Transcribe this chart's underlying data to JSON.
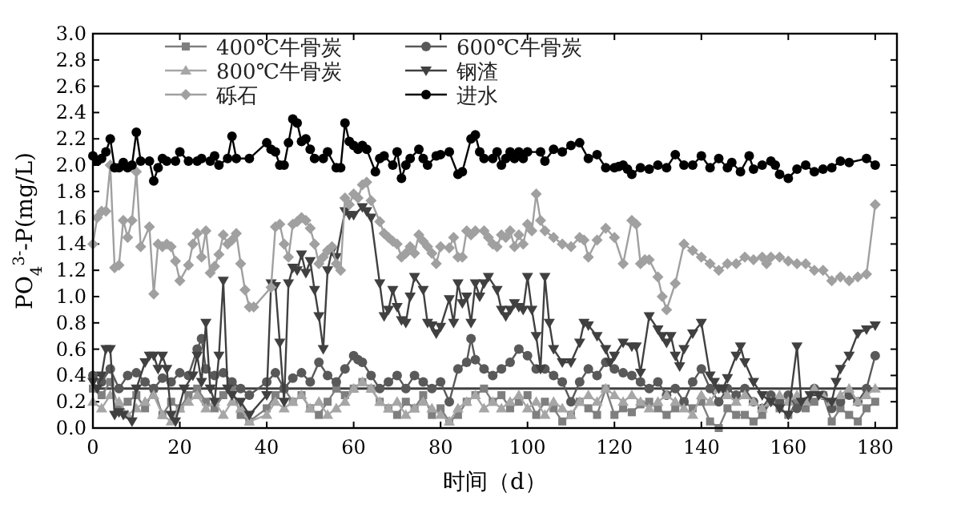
{
  "chart_data": {
    "type": "line",
    "xlabel": "时间（d）",
    "ylabel": "PO$_{4}$$^{3-}$-P(mg/L)",
    "xlim": [
      0,
      185
    ],
    "ylim": [
      0,
      3
    ],
    "xticks": [
      0,
      20,
      40,
      60,
      80,
      100,
      120,
      140,
      160,
      180
    ],
    "yticks": [
      {
        "value": 0,
        "label": "0.0"
      },
      {
        "value": 0.2,
        "label": "0.2"
      },
      {
        "value": 0.4,
        "label": "0.4"
      },
      {
        "value": 0.6,
        "label": "0.6"
      },
      {
        "value": 0.8,
        "label": "0.8"
      },
      {
        "value": 1,
        "label": "1.0"
      },
      {
        "value": 1.2,
        "label": "1.2"
      },
      {
        "value": 1.4,
        "label": "1.4"
      },
      {
        "value": 1.6,
        "label": "1.6"
      },
      {
        "value": 1.8,
        "label": "1.8"
      },
      {
        "value": 2,
        "label": "2.0"
      },
      {
        "value": 2.2,
        "label": "2.2"
      },
      {
        "value": 2.4,
        "label": "2.4"
      },
      {
        "value": 2.6,
        "label": "2.6"
      },
      {
        "value": 2.8,
        "label": "2.8"
      },
      {
        "value": 3,
        "label": "3.0"
      }
    ],
    "grid": false,
    "legend": "top left",
    "line_style": "solid",
    "ref_lines": [
      {
        "axis": "y",
        "value": 0.3,
        "color": "#404040"
      }
    ],
    "series": [
      {
        "name": "400℃牛骨炭",
        "color": "#7f7f7f",
        "marker": "square",
        "x": [
          0,
          2,
          4,
          6,
          8,
          10,
          12,
          14,
          16,
          18,
          20,
          22,
          24,
          26,
          28,
          30,
          32,
          34,
          36,
          40,
          42,
          44,
          46,
          48,
          50,
          52,
          54,
          56,
          58,
          60,
          62,
          64,
          66,
          68,
          70,
          72,
          74,
          76,
          78,
          80,
          82,
          84,
          86,
          88,
          90,
          92,
          94,
          96,
          98,
          100,
          102,
          104,
          106,
          108,
          110,
          112,
          114,
          116,
          118,
          120,
          122,
          124,
          126,
          128,
          130,
          132,
          134,
          136,
          138,
          140,
          142,
          144,
          146,
          148,
          150,
          152,
          154,
          156,
          158,
          160,
          162,
          164,
          166,
          168,
          170,
          172,
          174,
          176,
          178,
          180
        ],
        "values": [
          0.3,
          0.25,
          0.35,
          0.15,
          0.2,
          0.25,
          0.15,
          0.3,
          0.1,
          0.2,
          0.15,
          0.25,
          0.3,
          0.2,
          0.15,
          0.25,
          0.3,
          0.1,
          0.05,
          0.15,
          0.25,
          0.3,
          0.2,
          0.25,
          0.15,
          0.1,
          0.2,
          0.3,
          0.25,
          0.3,
          0.35,
          0.3,
          0.2,
          0.15,
          0.1,
          0.2,
          0.15,
          0.25,
          0.1,
          0.15,
          0.05,
          0.1,
          0.2,
          0.25,
          0.3,
          0.2,
          0.25,
          0.15,
          0.2,
          0.25,
          0.1,
          0.2,
          0.15,
          0.05,
          0.1,
          0.2,
          0.15,
          0.1,
          0.3,
          0.1,
          0.15,
          0.12,
          0.18,
          0.2,
          0.15,
          0.1,
          0.15,
          0.2,
          0.15,
          0.2,
          0.05,
          0.0,
          0.15,
          0.1,
          0.1,
          0.05,
          0.1,
          0.2,
          0.15,
          0.1,
          0.2,
          0.15,
          0.2,
          0.25,
          0.05,
          0.15,
          0.1,
          0.05,
          0.15,
          0.2
        ]
      },
      {
        "name": "600℃牛骨炭",
        "color": "#595959",
        "marker": "circle",
        "x": [
          0,
          2,
          4,
          6,
          8,
          10,
          12,
          14,
          16,
          18,
          20,
          22,
          24,
          25,
          26,
          28,
          30,
          32,
          34,
          36,
          40,
          42,
          44,
          46,
          48,
          50,
          52,
          54,
          56,
          58,
          60,
          61,
          62,
          64,
          66,
          68,
          70,
          72,
          74,
          76,
          78,
          80,
          82,
          84,
          86,
          87,
          88,
          90,
          92,
          94,
          96,
          98,
          100,
          102,
          104,
          106,
          108,
          110,
          112,
          114,
          116,
          118,
          120,
          122,
          124,
          126,
          128,
          130,
          132,
          134,
          136,
          138,
          140,
          142,
          144,
          146,
          148,
          150,
          152,
          154,
          156,
          158,
          160,
          162,
          164,
          166,
          168,
          170,
          172,
          174,
          176,
          178,
          180
        ],
        "values": [
          0.4,
          0.35,
          0.45,
          0.3,
          0.4,
          0.42,
          0.35,
          0.3,
          0.38,
          0.35,
          0.42,
          0.4,
          0.6,
          0.68,
          0.45,
          0.4,
          0.42,
          0.35,
          0.3,
          0.25,
          0.35,
          0.42,
          0.3,
          0.38,
          0.42,
          0.35,
          0.5,
          0.4,
          0.35,
          0.45,
          0.55,
          0.52,
          0.5,
          0.4,
          0.3,
          0.35,
          0.4,
          0.3,
          0.4,
          0.35,
          0.3,
          0.35,
          0.2,
          0.45,
          0.5,
          0.68,
          0.52,
          0.45,
          0.4,
          0.45,
          0.5,
          0.6,
          0.55,
          0.45,
          0.45,
          0.4,
          0.35,
          0.2,
          0.35,
          0.45,
          0.4,
          0.5,
          0.45,
          0.42,
          0.4,
          0.35,
          0.3,
          0.35,
          0.25,
          0.3,
          0.2,
          0.35,
          0.45,
          0.3,
          0.2,
          0.3,
          0.25,
          0.3,
          0.2,
          0.15,
          0.25,
          0.2,
          0.25,
          0.15,
          0.2,
          0.3,
          0.25,
          0.15,
          0.2,
          0.25,
          0.2,
          0.3,
          0.55
        ]
      },
      {
        "name": "800℃牛骨炭",
        "color": "#a6a6a6",
        "marker": "triangle",
        "x": [
          0,
          2,
          4,
          6,
          8,
          10,
          12,
          14,
          16,
          18,
          20,
          22,
          24,
          26,
          28,
          30,
          32,
          34,
          36,
          40,
          42,
          44,
          46,
          48,
          50,
          52,
          54,
          56,
          58,
          60,
          62,
          64,
          66,
          68,
          70,
          72,
          74,
          76,
          78,
          80,
          82,
          84,
          86,
          88,
          90,
          92,
          94,
          96,
          98,
          100,
          102,
          104,
          106,
          108,
          110,
          112,
          114,
          116,
          118,
          120,
          122,
          124,
          126,
          128,
          130,
          132,
          134,
          136,
          138,
          140,
          142,
          144,
          146,
          148,
          150,
          152,
          154,
          156,
          158,
          160,
          162,
          164,
          166,
          168,
          170,
          172,
          174,
          176,
          178,
          180
        ],
        "values": [
          0.2,
          0.15,
          0.25,
          0.2,
          0.1,
          0.15,
          0.2,
          0.25,
          0.1,
          0.05,
          0.15,
          0.2,
          0.25,
          0.15,
          0.2,
          0.1,
          0.2,
          0.15,
          0.05,
          0.1,
          0.2,
          0.15,
          0.2,
          0.25,
          0.15,
          0.2,
          0.1,
          0.15,
          0.2,
          0.3,
          0.35,
          0.3,
          0.2,
          0.15,
          0.2,
          0.1,
          0.15,
          0.2,
          0.15,
          0.1,
          0.05,
          0.15,
          0.2,
          0.25,
          0.15,
          0.2,
          0.15,
          0.2,
          0.25,
          0.15,
          0.2,
          0.1,
          0.2,
          0.15,
          0.1,
          0.2,
          0.25,
          0.2,
          0.3,
          0.25,
          0.2,
          0.25,
          0.2,
          0.15,
          0.2,
          0.25,
          0.2,
          0.15,
          0.1,
          0.25,
          0.2,
          0.3,
          0.25,
          0.2,
          0.25,
          0.2,
          0.15,
          0.2,
          0.25,
          0.2,
          0.25,
          0.2,
          0.3,
          0.25,
          0.2,
          0.25,
          0.3,
          0.2,
          0.25,
          0.3
        ]
      },
      {
        "name": "钢渣",
        "color": "#404040",
        "marker": "triangle-down",
        "x": [
          0,
          1,
          2,
          3,
          4,
          5,
          6,
          7,
          9,
          10,
          12,
          13,
          14,
          15,
          16,
          17,
          18,
          19,
          21,
          23,
          24,
          25,
          26,
          27,
          28,
          29,
          30,
          31,
          32,
          34,
          36,
          40,
          41,
          42,
          43,
          44,
          45,
          46,
          47,
          48,
          49,
          50,
          51,
          52,
          53,
          54,
          55,
          56,
          58,
          59,
          60,
          62,
          63,
          64,
          66,
          67,
          68,
          69,
          70,
          71,
          72,
          73,
          74,
          76,
          77,
          78,
          79,
          80,
          82,
          83,
          84,
          85,
          86,
          87,
          88,
          89,
          90,
          91,
          93,
          94,
          95,
          96,
          97,
          98,
          99,
          100,
          101,
          102,
          103,
          104,
          105,
          106,
          108,
          110,
          112,
          113,
          114,
          116,
          118,
          119,
          120,
          122,
          124,
          125,
          126,
          128,
          130,
          131,
          132,
          133,
          134,
          135,
          136,
          138,
          140,
          142,
          143,
          144,
          145,
          146,
          148,
          149,
          150,
          152,
          154,
          156,
          158,
          160,
          162,
          163,
          165,
          167,
          170,
          171,
          172,
          174,
          176,
          178,
          180
        ],
        "values": [
          0.35,
          0.3,
          0.4,
          0.6,
          0.6,
          0.1,
          0.12,
          0.1,
          0.05,
          0.3,
          0.5,
          0.55,
          0.55,
          0.45,
          0.55,
          0.45,
          0.1,
          0.05,
          0.3,
          0.4,
          0.55,
          0.35,
          0.8,
          0.3,
          0.2,
          0.55,
          1.12,
          0.3,
          0.25,
          0.2,
          0.1,
          0.25,
          1.1,
          1.08,
          0.65,
          0.2,
          1.1,
          1.22,
          1.2,
          1.32,
          1.18,
          1.27,
          1.05,
          0.85,
          0.6,
          1.2,
          1.35,
          1.3,
          1.65,
          1.62,
          1.62,
          1.68,
          1.65,
          1.6,
          1.1,
          0.85,
          0.9,
          1.05,
          0.92,
          0.82,
          0.8,
          1.0,
          1.15,
          1.05,
          0.8,
          0.78,
          0.72,
          0.77,
          0.98,
          0.8,
          1.1,
          0.95,
          1.0,
          0.8,
          1.1,
          1.0,
          1.1,
          1.15,
          1.05,
          0.9,
          0.85,
          0.9,
          0.95,
          0.92,
          0.9,
          1.15,
          0.9,
          0.7,
          0.45,
          1.15,
          0.8,
          0.6,
          0.5,
          0.5,
          0.65,
          0.8,
          0.78,
          0.7,
          0.6,
          0.5,
          0.55,
          0.65,
          0.62,
          0.62,
          0.42,
          0.85,
          0.75,
          0.7,
          0.65,
          0.7,
          0.55,
          0.47,
          0.6,
          0.72,
          0.8,
          0.4,
          0.35,
          0.3,
          0.3,
          0.38,
          0.55,
          0.62,
          0.5,
          0.35,
          0.25,
          0.2,
          0.15,
          0.1,
          0.62,
          0.2,
          0.25,
          0.25,
          0.2,
          0.35,
          0.45,
          0.55,
          0.72,
          0.75,
          0.78
        ]
      },
      {
        "name": "砾石",
        "color": "#a0a0a0",
        "marker": "diamond",
        "x": [
          0,
          1,
          2,
          3,
          4,
          5,
          6,
          7,
          8,
          9,
          10,
          11,
          13,
          14,
          15,
          16,
          17,
          18,
          19,
          20,
          22,
          23,
          24,
          25,
          26,
          27,
          28,
          29,
          30,
          31,
          32,
          33,
          34,
          35,
          36,
          37,
          41,
          42,
          43,
          44,
          45,
          46,
          47,
          48,
          49,
          50,
          51,
          52,
          53,
          54,
          55,
          56,
          57,
          58,
          59,
          60,
          61,
          62,
          63,
          64,
          66,
          67,
          68,
          69,
          70,
          71,
          72,
          73,
          74,
          75,
          76,
          77,
          78,
          79,
          80,
          82,
          83,
          84,
          85,
          86,
          87,
          88,
          90,
          91,
          92,
          93,
          94,
          95,
          96,
          97,
          98,
          99,
          100,
          101,
          102,
          103,
          104,
          106,
          108,
          110,
          112,
          113,
          114,
          116,
          118,
          120,
          122,
          124,
          125,
          126,
          127,
          128,
          130,
          131,
          132,
          134,
          136,
          138,
          140,
          142,
          144,
          146,
          148,
          150,
          152,
          154,
          155,
          156,
          158,
          160,
          162,
          164,
          166,
          168,
          170,
          172,
          174,
          176,
          178,
          180
        ],
        "values": [
          1.4,
          1.6,
          1.65,
          1.65,
          2.0,
          1.22,
          1.24,
          1.58,
          1.45,
          1.58,
          1.95,
          1.38,
          1.53,
          1.02,
          1.4,
          1.38,
          1.4,
          1.38,
          1.27,
          1.12,
          1.24,
          1.4,
          1.48,
          1.3,
          1.5,
          1.18,
          1.23,
          1.32,
          1.47,
          1.4,
          1.43,
          1.48,
          1.25,
          1.05,
          0.92,
          0.92,
          1.07,
          1.53,
          1.55,
          1.4,
          1.3,
          1.55,
          1.57,
          1.6,
          1.58,
          1.52,
          1.4,
          1.25,
          1.3,
          1.35,
          1.38,
          1.25,
          1.2,
          1.75,
          1.7,
          1.78,
          1.75,
          1.85,
          1.87,
          1.73,
          1.57,
          1.48,
          1.45,
          1.42,
          1.4,
          1.3,
          1.33,
          1.38,
          1.33,
          1.47,
          1.42,
          1.38,
          1.33,
          1.25,
          1.38,
          1.37,
          1.45,
          1.3,
          1.3,
          1.5,
          1.47,
          1.5,
          1.5,
          1.45,
          1.4,
          1.38,
          1.47,
          1.45,
          1.5,
          1.38,
          1.47,
          1.4,
          1.55,
          1.5,
          1.78,
          1.58,
          1.5,
          1.45,
          1.4,
          1.38,
          1.45,
          1.43,
          1.3,
          1.43,
          1.52,
          1.45,
          1.25,
          1.58,
          1.55,
          1.25,
          1.28,
          1.28,
          1.15,
          1.0,
          0.9,
          1.1,
          1.4,
          1.35,
          1.3,
          1.25,
          1.2,
          1.25,
          1.25,
          1.3,
          1.28,
          1.3,
          1.25,
          1.3,
          1.3,
          1.27,
          1.25,
          1.25,
          1.2,
          1.2,
          1.12,
          1.15,
          1.12,
          1.15,
          1.17,
          1.7
        ]
      },
      {
        "name": "进水",
        "color": "#000000",
        "marker": "circle",
        "x": [
          0,
          1,
          2,
          3,
          4,
          5,
          6,
          7,
          8,
          9,
          10,
          11,
          13,
          14,
          15,
          16,
          17,
          19,
          20,
          22,
          24,
          25,
          27,
          28,
          29,
          31,
          32,
          33,
          36,
          40,
          41,
          42,
          43,
          44,
          45,
          46,
          47,
          48,
          49,
          50,
          51,
          53,
          54,
          56,
          57,
          58,
          59,
          60,
          61,
          62,
          63,
          65,
          66,
          67,
          69,
          70,
          71,
          72,
          73,
          75,
          76,
          77,
          79,
          80,
          82,
          84,
          85,
          87,
          88,
          89,
          90,
          92,
          93,
          94,
          95,
          96,
          97,
          98,
          99,
          100,
          103,
          104,
          106,
          108,
          110,
          112,
          114,
          116,
          118,
          120,
          121,
          122,
          123,
          124,
          126,
          128,
          130,
          132,
          134,
          136,
          138,
          140,
          142,
          144,
          146,
          147,
          149,
          151,
          152,
          154,
          156,
          157,
          158,
          160,
          162,
          164,
          166,
          168,
          170,
          172,
          174,
          178,
          180
        ],
        "values": [
          2.07,
          2.03,
          2.05,
          2.1,
          2.2,
          1.98,
          1.98,
          2.02,
          1.98,
          2.0,
          2.25,
          2.03,
          2.03,
          1.88,
          1.98,
          2.05,
          2.03,
          2.03,
          2.1,
          2.03,
          2.03,
          2.05,
          2.03,
          2.07,
          2.0,
          2.05,
          2.22,
          2.05,
          2.05,
          2.17,
          2.12,
          2.1,
          2.0,
          2.0,
          2.17,
          2.35,
          2.32,
          2.18,
          2.2,
          2.12,
          2.05,
          2.05,
          2.1,
          1.98,
          1.98,
          2.32,
          2.18,
          2.15,
          2.12,
          2.15,
          2.12,
          1.95,
          2.05,
          2.07,
          2.0,
          2.1,
          1.9,
          2.0,
          2.05,
          2.12,
          2.05,
          2.0,
          2.07,
          2.08,
          2.1,
          1.93,
          1.95,
          2.2,
          2.23,
          2.1,
          2.05,
          2.05,
          2.1,
          2.0,
          2.05,
          2.1,
          2.05,
          2.1,
          2.05,
          2.1,
          2.1,
          2.03,
          2.12,
          2.1,
          2.15,
          2.17,
          2.05,
          2.08,
          1.98,
          1.98,
          1.99,
          2.0,
          1.97,
          1.93,
          1.98,
          1.97,
          2.0,
          1.98,
          2.08,
          2.0,
          2.0,
          2.07,
          1.98,
          2.05,
          1.98,
          2.02,
          1.95,
          2.07,
          1.97,
          2.0,
          2.03,
          2.0,
          1.93,
          1.9,
          1.97,
          2.0,
          1.95,
          1.97,
          1.98,
          2.03,
          2.02,
          2.05,
          2.0
        ]
      }
    ]
  }
}
